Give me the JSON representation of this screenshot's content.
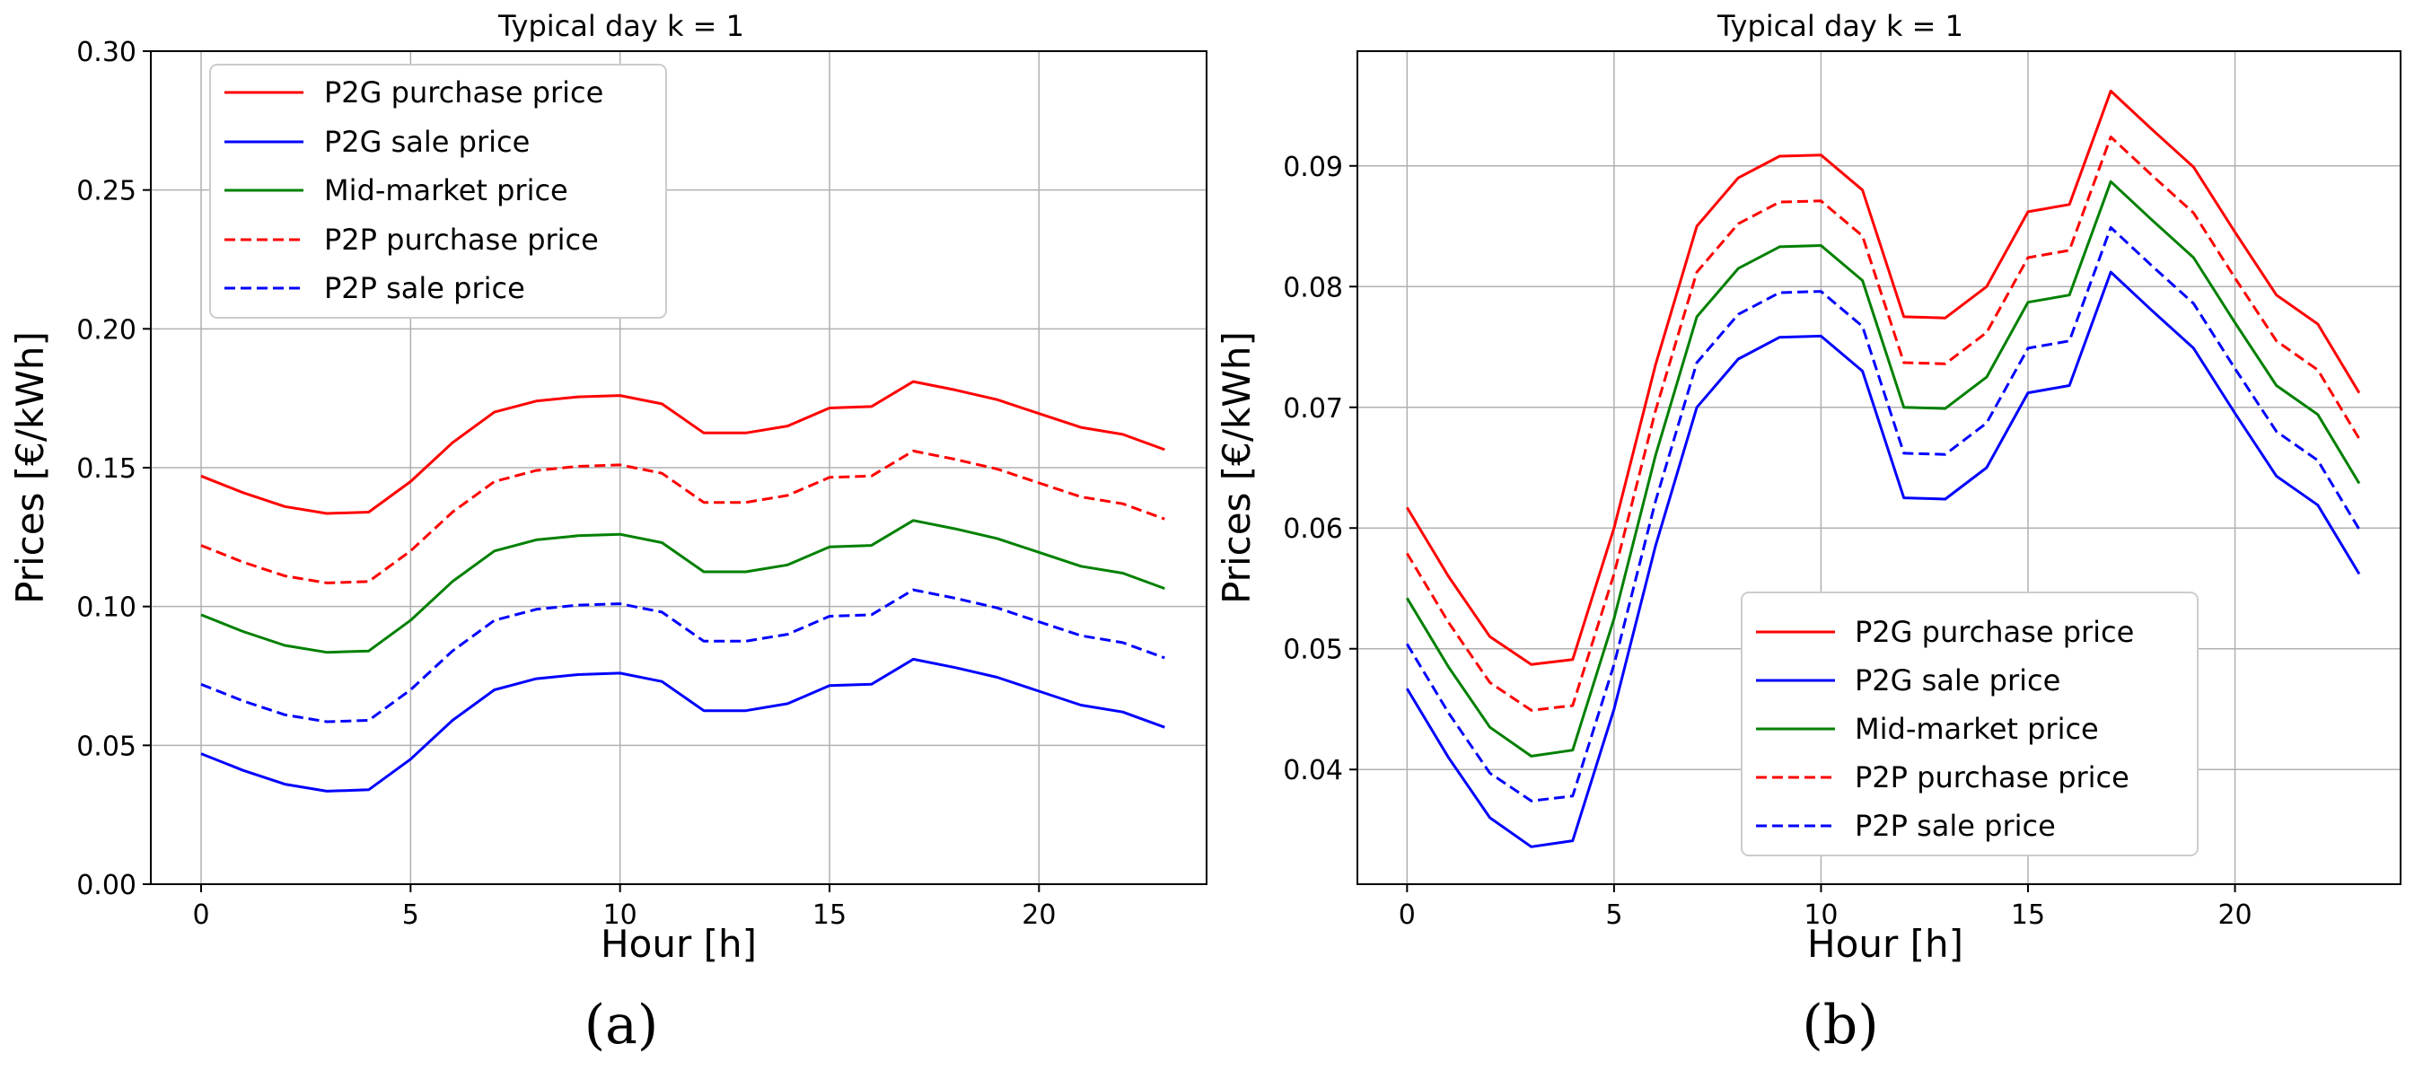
{
  "chart_data": [
    {
      "type": "line",
      "panel_label": "(a)",
      "title": "Typical day k = 1",
      "xlabel": "Hour [h]",
      "ylabel": "Prices [€/kWh]",
      "xlim": [
        -1.2,
        24
      ],
      "ylim": [
        0,
        0.3
      ],
      "xticks": [
        0,
        5,
        10,
        15,
        20
      ],
      "yticks": [
        0.0,
        0.05,
        0.1,
        0.15,
        0.2,
        0.25,
        0.3
      ],
      "ytick_labels": [
        "0.00",
        "0.05",
        "0.10",
        "0.15",
        "0.20",
        "0.25",
        "0.30"
      ],
      "grid": true,
      "legend_position": "top-left",
      "x": [
        0,
        1,
        2,
        3,
        4,
        5,
        6,
        7,
        8,
        9,
        10,
        11,
        12,
        13,
        14,
        15,
        16,
        17,
        18,
        19,
        20,
        21,
        22,
        23
      ],
      "series": [
        {
          "name": "P2G purchase price",
          "color": "#ff0000",
          "dash": "solid",
          "values": [
            0.147,
            0.141,
            0.136,
            0.1335,
            0.134,
            0.145,
            0.159,
            0.17,
            0.174,
            0.1755,
            0.176,
            0.173,
            0.1625,
            0.1625,
            0.165,
            0.1715,
            0.172,
            0.181,
            0.178,
            0.1745,
            0.1695,
            0.1645,
            0.162,
            0.1565
          ]
        },
        {
          "name": "P2G sale price",
          "color": "#0000ff",
          "dash": "solid",
          "values": [
            0.047,
            0.041,
            0.036,
            0.0335,
            0.034,
            0.045,
            0.059,
            0.07,
            0.074,
            0.0755,
            0.076,
            0.073,
            0.0625,
            0.0625,
            0.065,
            0.0715,
            0.072,
            0.081,
            0.078,
            0.0745,
            0.0695,
            0.0645,
            0.062,
            0.0565
          ]
        },
        {
          "name": "Mid-market price",
          "color": "#008000",
          "dash": "solid",
          "values": [
            0.097,
            0.091,
            0.086,
            0.0835,
            0.084,
            0.095,
            0.109,
            0.12,
            0.124,
            0.1255,
            0.126,
            0.123,
            0.1125,
            0.1125,
            0.115,
            0.1215,
            0.122,
            0.131,
            0.128,
            0.1245,
            0.1195,
            0.1145,
            0.112,
            0.1065
          ]
        },
        {
          "name": "P2P purchase price",
          "color": "#ff0000",
          "dash": "dashed",
          "values": [
            0.122,
            0.116,
            0.111,
            0.1085,
            0.109,
            0.12,
            0.134,
            0.145,
            0.149,
            0.1505,
            0.151,
            0.148,
            0.1375,
            0.1375,
            0.14,
            0.1465,
            0.147,
            0.156,
            0.153,
            0.1495,
            0.1445,
            0.1395,
            0.137,
            0.1315
          ]
        },
        {
          "name": "P2P sale price",
          "color": "#0000ff",
          "dash": "dashed",
          "values": [
            0.072,
            0.066,
            0.061,
            0.0585,
            0.059,
            0.07,
            0.084,
            0.095,
            0.099,
            0.1005,
            0.101,
            0.098,
            0.0875,
            0.0875,
            0.09,
            0.0965,
            0.097,
            0.106,
            0.103,
            0.0995,
            0.0945,
            0.0895,
            0.087,
            0.0815
          ]
        }
      ]
    },
    {
      "type": "line",
      "panel_label": "(b)",
      "title": "Typical day k = 1",
      "xlabel": "Hour [h]",
      "ylabel": "Prices [€/kWh]",
      "xlim": [
        -1.2,
        24
      ],
      "ylim": [
        0.0305,
        0.0995
      ],
      "xticks": [
        0,
        5,
        10,
        15,
        20
      ],
      "yticks": [
        0.04,
        0.05,
        0.06,
        0.07,
        0.08,
        0.09
      ],
      "ytick_labels": [
        "0.04",
        "0.05",
        "0.06",
        "0.07",
        "0.08",
        "0.09"
      ],
      "grid": true,
      "legend_position": "bottom-right",
      "x": [
        0,
        1,
        2,
        3,
        4,
        5,
        6,
        7,
        8,
        9,
        10,
        11,
        12,
        13,
        14,
        15,
        16,
        17,
        18,
        19,
        20,
        21,
        22,
        23
      ],
      "series": [
        {
          "name": "P2G purchase price",
          "color": "#ff0000",
          "dash": "solid",
          "values": [
            0.0617,
            0.056,
            0.051,
            0.0487,
            0.0491,
            0.06,
            0.0735,
            0.085,
            0.089,
            0.0908,
            0.0909,
            0.088,
            0.0775,
            0.0774,
            0.08,
            0.0862,
            0.0868,
            0.0962,
            0.093,
            0.0899,
            0.0845,
            0.0793,
            0.0769,
            0.0712
          ]
        },
        {
          "name": "P2G sale price",
          "color": "#0000ff",
          "dash": "solid",
          "values": [
            0.0467,
            0.041,
            0.036,
            0.0336,
            0.0341,
            0.045,
            0.0585,
            0.07,
            0.074,
            0.0758,
            0.0759,
            0.073,
            0.0625,
            0.0624,
            0.065,
            0.0712,
            0.0718,
            0.0812,
            0.078,
            0.0749,
            0.0695,
            0.0643,
            0.0619,
            0.0562
          ]
        },
        {
          "name": "Mid-market price",
          "color": "#008000",
          "dash": "solid",
          "values": [
            0.0542,
            0.0485,
            0.0435,
            0.0411,
            0.0416,
            0.0525,
            0.066,
            0.0775,
            0.0815,
            0.0833,
            0.0834,
            0.0805,
            0.07,
            0.0699,
            0.0725,
            0.0787,
            0.0793,
            0.0887,
            0.0855,
            0.0824,
            0.077,
            0.0718,
            0.0694,
            0.0637
          ]
        },
        {
          "name": "P2P purchase price",
          "color": "#ff0000",
          "dash": "dashed",
          "values": [
            0.0579,
            0.0522,
            0.0472,
            0.0449,
            0.0453,
            0.0562,
            0.0697,
            0.0812,
            0.0852,
            0.087,
            0.0871,
            0.0842,
            0.0737,
            0.0736,
            0.0762,
            0.0824,
            0.083,
            0.0924,
            0.0892,
            0.0861,
            0.0807,
            0.0755,
            0.0731,
            0.0674
          ]
        },
        {
          "name": "P2P sale price",
          "color": "#0000ff",
          "dash": "dashed",
          "values": [
            0.0504,
            0.0447,
            0.0397,
            0.0374,
            0.0378,
            0.0487,
            0.0622,
            0.0737,
            0.0777,
            0.0795,
            0.0796,
            0.0767,
            0.0662,
            0.0661,
            0.0687,
            0.0749,
            0.0755,
            0.0849,
            0.0817,
            0.0786,
            0.0732,
            0.068,
            0.0656,
            0.0599
          ]
        }
      ]
    }
  ]
}
